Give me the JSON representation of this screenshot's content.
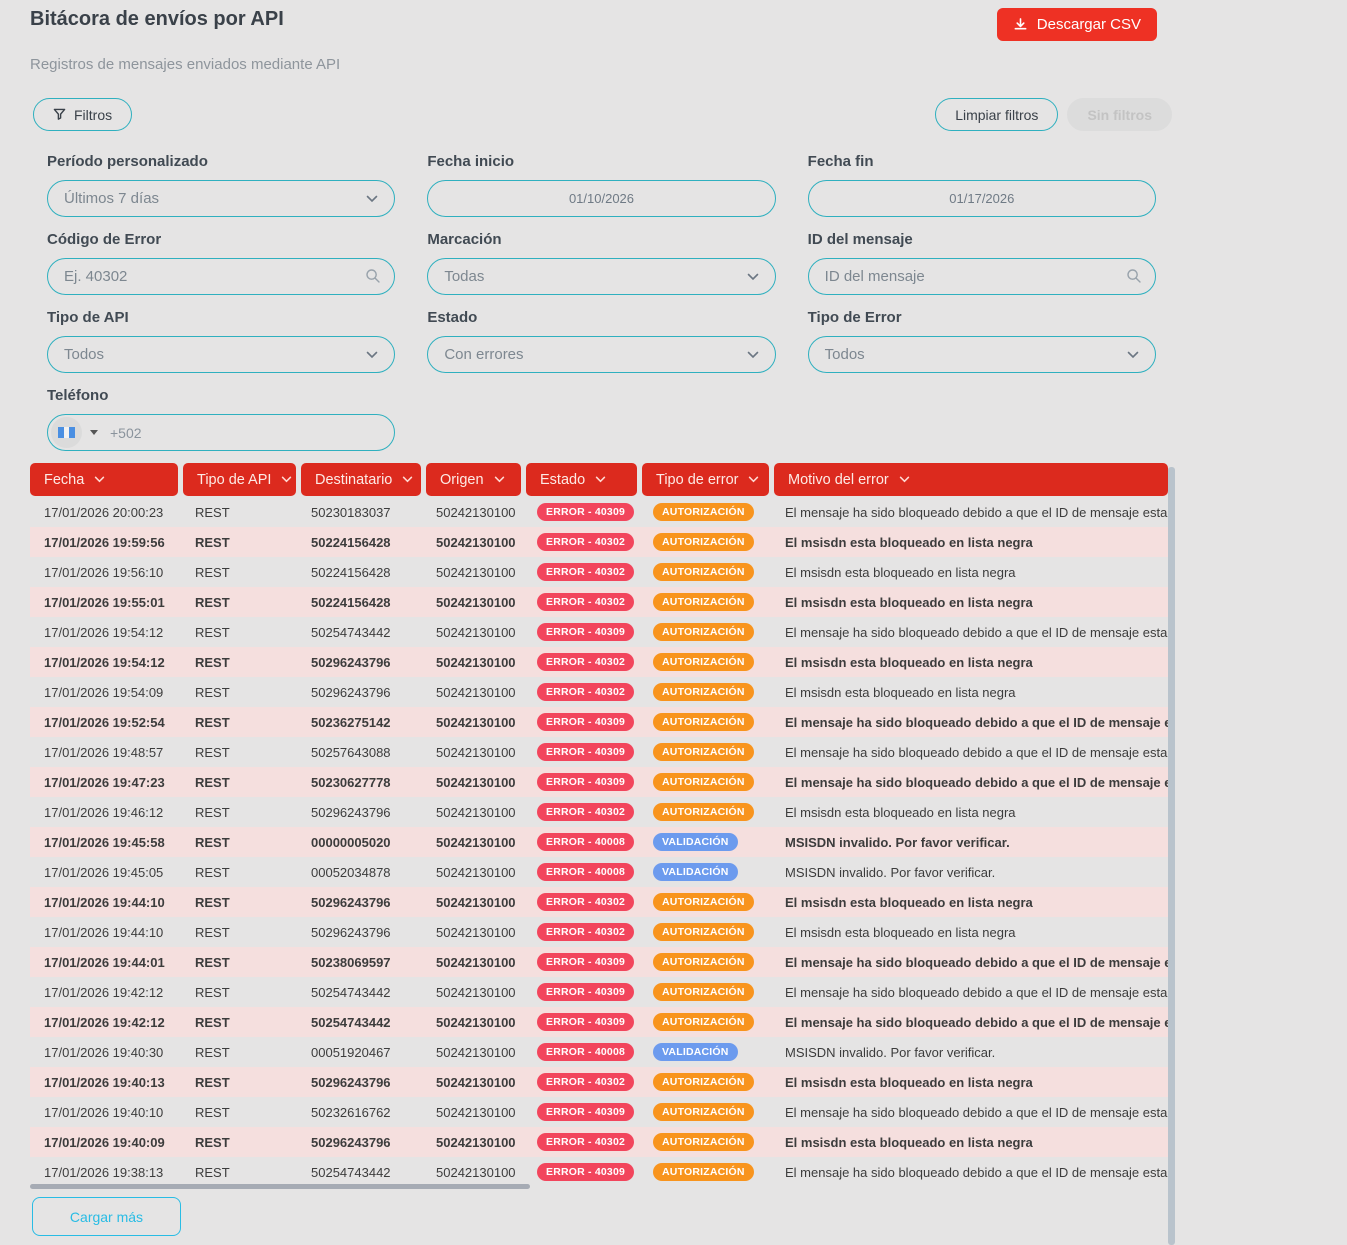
{
  "page": {
    "title": "Bitácora de envíos por API",
    "subtitle": "Registros de mensajes enviados mediante API"
  },
  "actions": {
    "download_csv": "Descargar CSV",
    "filters": "Filtros",
    "clear_filters": "Limpiar filtros",
    "no_filters": "Sin filtros",
    "load_more": "Cargar más"
  },
  "filters": {
    "periodo": {
      "label": "Período personalizado",
      "value": "Últimos 7 días"
    },
    "fecha_inicio": {
      "label": "Fecha inicio",
      "value": "01/10/2026"
    },
    "fecha_fin": {
      "label": "Fecha fin",
      "value": "01/17/2026"
    },
    "codigo_error": {
      "label": "Código de Error",
      "placeholder": "Ej. 40302"
    },
    "marcacion": {
      "label": "Marcación",
      "value": "Todas"
    },
    "id_mensaje": {
      "label": "ID del mensaje",
      "placeholder": "ID del mensaje"
    },
    "tipo_api": {
      "label": "Tipo de API",
      "value": "Todos"
    },
    "estado": {
      "label": "Estado",
      "value": "Con errores"
    },
    "tipo_error": {
      "label": "Tipo de Error",
      "value": "Todos"
    },
    "telefono": {
      "label": "Teléfono",
      "placeholder": "+502"
    }
  },
  "table": {
    "columns": [
      "Fecha",
      "Tipo de API",
      "Destinatario",
      "Origen",
      "Estado",
      "Tipo de error",
      "Motivo del error"
    ],
    "badge_colors": {
      "AUTORIZACIÓN": "#f8941d",
      "VALIDACIÓN": "#6c9bee"
    },
    "rows": [
      {
        "fecha": "17/01/2026 20:00:23",
        "tipo_api": "REST",
        "destinatario": "50230183037",
        "origen": "50242130100",
        "estado": "ERROR - 40309",
        "tipo_error": "AUTORIZACIÓN",
        "motivo": "El mensaje ha sido bloqueado debido a que el ID de mensaje esta du"
      },
      {
        "fecha": "17/01/2026 19:59:56",
        "tipo_api": "REST",
        "destinatario": "50224156428",
        "origen": "50242130100",
        "estado": "ERROR - 40302",
        "tipo_error": "AUTORIZACIÓN",
        "motivo": "El msisdn esta bloqueado en lista negra"
      },
      {
        "fecha": "17/01/2026 19:56:10",
        "tipo_api": "REST",
        "destinatario": "50224156428",
        "origen": "50242130100",
        "estado": "ERROR - 40302",
        "tipo_error": "AUTORIZACIÓN",
        "motivo": "El msisdn esta bloqueado en lista negra"
      },
      {
        "fecha": "17/01/2026 19:55:01",
        "tipo_api": "REST",
        "destinatario": "50224156428",
        "origen": "50242130100",
        "estado": "ERROR - 40302",
        "tipo_error": "AUTORIZACIÓN",
        "motivo": "El msisdn esta bloqueado en lista negra"
      },
      {
        "fecha": "17/01/2026 19:54:12",
        "tipo_api": "REST",
        "destinatario": "50254743442",
        "origen": "50242130100",
        "estado": "ERROR - 40309",
        "tipo_error": "AUTORIZACIÓN",
        "motivo": "El mensaje ha sido bloqueado debido a que el ID de mensaje esta du"
      },
      {
        "fecha": "17/01/2026 19:54:12",
        "tipo_api": "REST",
        "destinatario": "50296243796",
        "origen": "50242130100",
        "estado": "ERROR - 40302",
        "tipo_error": "AUTORIZACIÓN",
        "motivo": "El msisdn esta bloqueado en lista negra"
      },
      {
        "fecha": "17/01/2026 19:54:09",
        "tipo_api": "REST",
        "destinatario": "50296243796",
        "origen": "50242130100",
        "estado": "ERROR - 40302",
        "tipo_error": "AUTORIZACIÓN",
        "motivo": "El msisdn esta bloqueado en lista negra"
      },
      {
        "fecha": "17/01/2026 19:52:54",
        "tipo_api": "REST",
        "destinatario": "50236275142",
        "origen": "50242130100",
        "estado": "ERROR - 40309",
        "tipo_error": "AUTORIZACIÓN",
        "motivo": "El mensaje ha sido bloqueado debido a que el ID de mensaje esta du"
      },
      {
        "fecha": "17/01/2026 19:48:57",
        "tipo_api": "REST",
        "destinatario": "50257643088",
        "origen": "50242130100",
        "estado": "ERROR - 40309",
        "tipo_error": "AUTORIZACIÓN",
        "motivo": "El mensaje ha sido bloqueado debido a que el ID de mensaje esta du"
      },
      {
        "fecha": "17/01/2026 19:47:23",
        "tipo_api": "REST",
        "destinatario": "50230627778",
        "origen": "50242130100",
        "estado": "ERROR - 40309",
        "tipo_error": "AUTORIZACIÓN",
        "motivo": "El mensaje ha sido bloqueado debido a que el ID de mensaje esta du"
      },
      {
        "fecha": "17/01/2026 19:46:12",
        "tipo_api": "REST",
        "destinatario": "50296243796",
        "origen": "50242130100",
        "estado": "ERROR - 40302",
        "tipo_error": "AUTORIZACIÓN",
        "motivo": "El msisdn esta bloqueado en lista negra"
      },
      {
        "fecha": "17/01/2026 19:45:58",
        "tipo_api": "REST",
        "destinatario": "00000005020",
        "origen": "50242130100",
        "estado": "ERROR - 40008",
        "tipo_error": "VALIDACIÓN",
        "motivo": "MSISDN invalido. Por favor verificar."
      },
      {
        "fecha": "17/01/2026 19:45:05",
        "tipo_api": "REST",
        "destinatario": "00052034878",
        "origen": "50242130100",
        "estado": "ERROR - 40008",
        "tipo_error": "VALIDACIÓN",
        "motivo": "MSISDN invalido. Por favor verificar."
      },
      {
        "fecha": "17/01/2026 19:44:10",
        "tipo_api": "REST",
        "destinatario": "50296243796",
        "origen": "50242130100",
        "estado": "ERROR - 40302",
        "tipo_error": "AUTORIZACIÓN",
        "motivo": "El msisdn esta bloqueado en lista negra"
      },
      {
        "fecha": "17/01/2026 19:44:10",
        "tipo_api": "REST",
        "destinatario": "50296243796",
        "origen": "50242130100",
        "estado": "ERROR - 40302",
        "tipo_error": "AUTORIZACIÓN",
        "motivo": "El msisdn esta bloqueado en lista negra"
      },
      {
        "fecha": "17/01/2026 19:44:01",
        "tipo_api": "REST",
        "destinatario": "50238069597",
        "origen": "50242130100",
        "estado": "ERROR - 40309",
        "tipo_error": "AUTORIZACIÓN",
        "motivo": "El mensaje ha sido bloqueado debido a que el ID de mensaje esta du"
      },
      {
        "fecha": "17/01/2026 19:42:12",
        "tipo_api": "REST",
        "destinatario": "50254743442",
        "origen": "50242130100",
        "estado": "ERROR - 40309",
        "tipo_error": "AUTORIZACIÓN",
        "motivo": "El mensaje ha sido bloqueado debido a que el ID de mensaje esta du"
      },
      {
        "fecha": "17/01/2026 19:42:12",
        "tipo_api": "REST",
        "destinatario": "50254743442",
        "origen": "50242130100",
        "estado": "ERROR - 40309",
        "tipo_error": "AUTORIZACIÓN",
        "motivo": "El mensaje ha sido bloqueado debido a que el ID de mensaje esta du"
      },
      {
        "fecha": "17/01/2026 19:40:30",
        "tipo_api": "REST",
        "destinatario": "00051920467",
        "origen": "50242130100",
        "estado": "ERROR - 40008",
        "tipo_error": "VALIDACIÓN",
        "motivo": "MSISDN invalido. Por favor verificar."
      },
      {
        "fecha": "17/01/2026 19:40:13",
        "tipo_api": "REST",
        "destinatario": "50296243796",
        "origen": "50242130100",
        "estado": "ERROR - 40302",
        "tipo_error": "AUTORIZACIÓN",
        "motivo": "El msisdn esta bloqueado en lista negra"
      },
      {
        "fecha": "17/01/2026 19:40:10",
        "tipo_api": "REST",
        "destinatario": "50232616762",
        "origen": "50242130100",
        "estado": "ERROR - 40309",
        "tipo_error": "AUTORIZACIÓN",
        "motivo": "El mensaje ha sido bloqueado debido a que el ID de mensaje esta du"
      },
      {
        "fecha": "17/01/2026 19:40:09",
        "tipo_api": "REST",
        "destinatario": "50296243796",
        "origen": "50242130100",
        "estado": "ERROR - 40302",
        "tipo_error": "AUTORIZACIÓN",
        "motivo": "El msisdn esta bloqueado en lista negra"
      },
      {
        "fecha": "17/01/2026 19:38:13",
        "tipo_api": "REST",
        "destinatario": "50254743442",
        "origen": "50242130100",
        "estado": "ERROR - 40309",
        "tipo_error": "AUTORIZACIÓN",
        "motivo": "El mensaje ha sido bloqueado debido a que el ID de mensaje esta du"
      }
    ]
  },
  "colors": {
    "header_red": "#dc2a1e",
    "button_red": "#ee3124",
    "teal": "#2fb0bf",
    "cyan": "#29bce4",
    "pink_row": "#f5dfde",
    "badge_error": "#f2455c"
  }
}
